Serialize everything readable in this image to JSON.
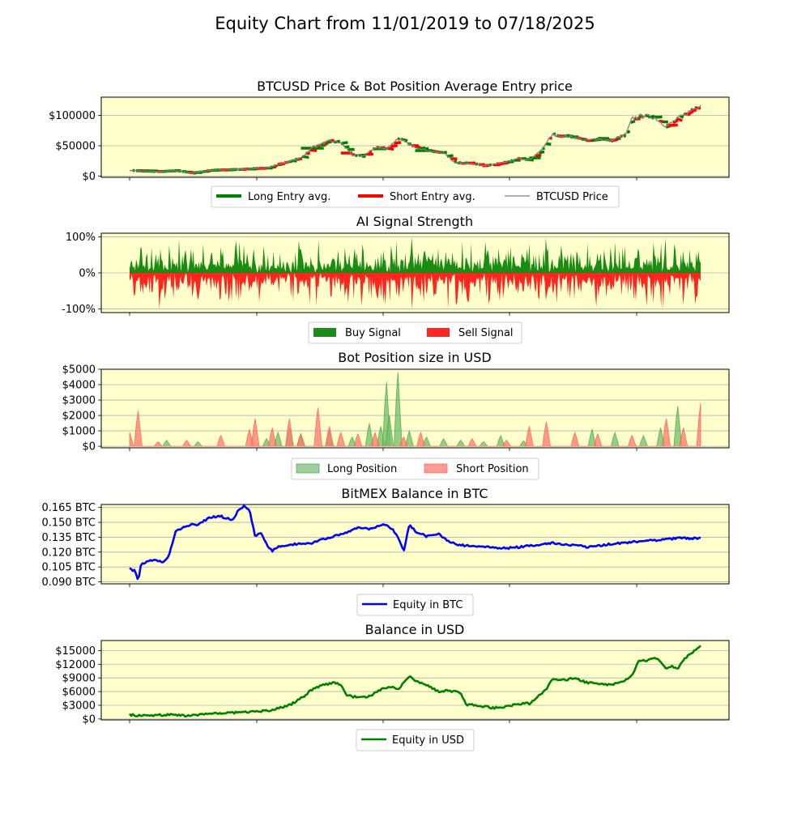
{
  "figure": {
    "title": "Equity Chart from 11/01/2019 to 07/18/2025"
  },
  "colors": {
    "panel_bg": "#ffffcc",
    "grid": "#b0b0b0",
    "green": "#008000",
    "red": "#ff0000",
    "gray": "#808080",
    "blue": "#0000ff",
    "long_fill": "#90cc88",
    "short_fill": "#ff9488"
  },
  "chart_data": [
    {
      "type": "line",
      "title": "BTCUSD Price & Bot Position Average Entry price",
      "y_ticks": [
        {
          "v": 0,
          "label": "$0"
        },
        {
          "v": 50000,
          "label": "$50000"
        },
        {
          "v": 100000,
          "label": "$100000"
        }
      ],
      "ylim": [
        -2000,
        130000
      ],
      "legend": [
        "Long Entry avg.",
        "Short Entry avg.",
        "BTCUSD Price"
      ],
      "x_range": [
        "11/01/2019",
        "07/18/2025"
      ],
      "series": [
        {
          "name": "BTCUSD Price",
          "anchors": [
            [
              0,
              9200
            ],
            [
              0.05,
              7500
            ],
            [
              0.08,
              9000
            ],
            [
              0.11,
              5000
            ],
            [
              0.14,
              9500
            ],
            [
              0.2,
              11500
            ],
            [
              0.24,
              13500
            ],
            [
              0.26,
              19000
            ],
            [
              0.3,
              30000
            ],
            [
              0.32,
              47000
            ],
            [
              0.35,
              58000
            ],
            [
              0.37,
              55000
            ],
            [
              0.39,
              35000
            ],
            [
              0.41,
              33000
            ],
            [
              0.43,
              47000
            ],
            [
              0.45,
              45000
            ],
            [
              0.47,
              62000
            ],
            [
              0.5,
              48000
            ],
            [
              0.53,
              40000
            ],
            [
              0.55,
              38000
            ],
            [
              0.57,
              22000
            ],
            [
              0.6,
              21000
            ],
            [
              0.62,
              17000
            ],
            [
              0.64,
              19500
            ],
            [
              0.66,
              23000
            ],
            [
              0.68,
              29000
            ],
            [
              0.7,
              26000
            ],
            [
              0.72,
              42000
            ],
            [
              0.74,
              68000
            ],
            [
              0.76,
              66000
            ],
            [
              0.78,
              64000
            ],
            [
              0.8,
              58000
            ],
            [
              0.82,
              62000
            ],
            [
              0.84,
              58000
            ],
            [
              0.86,
              65000
            ],
            [
              0.87,
              70000
            ],
            [
              0.88,
              95000
            ],
            [
              0.9,
              100000
            ],
            [
              0.92,
              96000
            ],
            [
              0.94,
              82000
            ],
            [
              0.96,
              95000
            ],
            [
              0.98,
              106000
            ],
            [
              1.0,
              118000
            ]
          ]
        },
        {
          "name": "Long Entry avg.",
          "segments": [
            [
              0.02,
              0.05,
              8500
            ],
            [
              0.3,
              0.34,
              46000
            ],
            [
              0.43,
              0.45,
              45000
            ],
            [
              0.5,
              0.53,
              42000
            ],
            [
              0.7,
              0.72,
              30000
            ],
            [
              0.82,
              0.84,
              62000
            ]
          ]
        },
        {
          "name": "Short Entry avg.",
          "segments": [
            [
              0.26,
              0.27,
              20000
            ],
            [
              0.37,
              0.39,
              38000
            ],
            [
              0.75,
              0.76,
              66000
            ],
            [
              0.94,
              0.96,
              84000
            ],
            [
              0.99,
              1.0,
              112000
            ]
          ]
        }
      ]
    },
    {
      "type": "area",
      "title": "AI Signal Strength",
      "y_ticks": [
        {
          "v": -100,
          "label": "-100%"
        },
        {
          "v": 0,
          "label": "0%"
        },
        {
          "v": 100,
          "label": "100%"
        }
      ],
      "ylim": [
        -110,
        110
      ],
      "legend": [
        "Buy Signal",
        "Sell Signal"
      ]
    },
    {
      "type": "area",
      "title": "Bot Position size in USD",
      "y_ticks": [
        {
          "v": 0,
          "label": "$0"
        },
        {
          "v": 1000,
          "label": "$1000"
        },
        {
          "v": 2000,
          "label": "$2000"
        },
        {
          "v": 3000,
          "label": "$3000"
        },
        {
          "v": 4000,
          "label": "$4000"
        },
        {
          "v": 5000,
          "label": "$5000"
        }
      ],
      "ylim": [
        -100,
        5000
      ],
      "legend": [
        "Long Position",
        "Short Position"
      ],
      "series": [
        {
          "name": "Long Position",
          "peaks": [
            [
              0.065,
              400
            ],
            [
              0.12,
              300
            ],
            [
              0.24,
              500
            ],
            [
              0.26,
              900
            ],
            [
              0.28,
              1200
            ],
            [
              0.3,
              800
            ],
            [
              0.35,
              1000
            ],
            [
              0.39,
              600
            ],
            [
              0.42,
              1500
            ],
            [
              0.44,
              1300
            ],
            [
              0.45,
              4200
            ],
            [
              0.455,
              2000
            ],
            [
              0.47,
              4800
            ],
            [
              0.49,
              1000
            ],
            [
              0.52,
              600
            ],
            [
              0.55,
              500
            ],
            [
              0.58,
              400
            ],
            [
              0.62,
              300
            ],
            [
              0.65,
              700
            ],
            [
              0.69,
              350
            ],
            [
              0.81,
              1100
            ],
            [
              0.85,
              900
            ],
            [
              0.9,
              700
            ],
            [
              0.93,
              1200
            ],
            [
              0.96,
              2600
            ]
          ]
        },
        {
          "name": "Short Position",
          "peaks": [
            [
              0.0,
              900
            ],
            [
              0.015,
              2300
            ],
            [
              0.05,
              300
            ],
            [
              0.1,
              400
            ],
            [
              0.16,
              700
            ],
            [
              0.21,
              1100
            ],
            [
              0.22,
              1800
            ],
            [
              0.25,
              1200
            ],
            [
              0.28,
              1800
            ],
            [
              0.3,
              800
            ],
            [
              0.33,
              2500
            ],
            [
              0.35,
              1300
            ],
            [
              0.37,
              900
            ],
            [
              0.4,
              800
            ],
            [
              0.43,
              900
            ],
            [
              0.48,
              600
            ],
            [
              0.51,
              900
            ],
            [
              0.6,
              500
            ],
            [
              0.66,
              400
            ],
            [
              0.7,
              1300
            ],
            [
              0.73,
              1600
            ],
            [
              0.78,
              900
            ],
            [
              0.82,
              800
            ],
            [
              0.88,
              700
            ],
            [
              0.94,
              1800
            ],
            [
              0.97,
              1200
            ],
            [
              1.0,
              2800
            ]
          ]
        }
      ]
    },
    {
      "type": "line",
      "title": "BitMEX Balance in BTC",
      "y_ticks": [
        {
          "v": 0.09,
          "label": "0.090 BTC"
        },
        {
          "v": 0.105,
          "label": "0.105 BTC"
        },
        {
          "v": 0.12,
          "label": "0.120 BTC"
        },
        {
          "v": 0.135,
          "label": "0.135 BTC"
        },
        {
          "v": 0.15,
          "label": "0.150 BTC"
        },
        {
          "v": 0.165,
          "label": "0.165 BTC"
        }
      ],
      "ylim": [
        0.088,
        0.168
      ],
      "legend": [
        "Equity in BTC"
      ],
      "series": [
        {
          "name": "Equity in BTC",
          "values": [
            [
              0,
              0.103
            ],
            [
              0.01,
              0.101
            ],
            [
              0.015,
              0.09
            ],
            [
              0.02,
              0.108
            ],
            [
              0.04,
              0.112
            ],
            [
              0.06,
              0.11
            ],
            [
              0.07,
              0.118
            ],
            [
              0.08,
              0.14
            ],
            [
              0.1,
              0.147
            ],
            [
              0.12,
              0.148
            ],
            [
              0.14,
              0.155
            ],
            [
              0.16,
              0.156
            ],
            [
              0.18,
              0.152
            ],
            [
              0.19,
              0.162
            ],
            [
              0.2,
              0.166
            ],
            [
              0.21,
              0.162
            ],
            [
              0.22,
              0.135
            ],
            [
              0.23,
              0.14
            ],
            [
              0.24,
              0.128
            ],
            [
              0.25,
              0.121
            ],
            [
              0.26,
              0.126
            ],
            [
              0.29,
              0.128
            ],
            [
              0.32,
              0.129
            ],
            [
              0.35,
              0.135
            ],
            [
              0.38,
              0.14
            ],
            [
              0.4,
              0.145
            ],
            [
              0.42,
              0.143
            ],
            [
              0.44,
              0.147
            ],
            [
              0.45,
              0.148
            ],
            [
              0.46,
              0.143
            ],
            [
              0.47,
              0.135
            ],
            [
              0.48,
              0.12
            ],
            [
              0.49,
              0.148
            ],
            [
              0.5,
              0.141
            ],
            [
              0.52,
              0.136
            ],
            [
              0.54,
              0.139
            ],
            [
              0.56,
              0.13
            ],
            [
              0.58,
              0.127
            ],
            [
              0.62,
              0.125
            ],
            [
              0.66,
              0.124
            ],
            [
              0.7,
              0.126
            ],
            [
              0.74,
              0.129
            ],
            [
              0.78,
              0.127
            ],
            [
              0.8,
              0.125
            ],
            [
              0.84,
              0.128
            ],
            [
              0.88,
              0.13
            ],
            [
              0.92,
              0.132
            ],
            [
              0.96,
              0.134
            ],
            [
              1.0,
              0.134
            ]
          ]
        }
      ]
    },
    {
      "type": "line",
      "title": "Balance in USD",
      "y_ticks": [
        {
          "v": 0,
          "label": "$0"
        },
        {
          "v": 3000,
          "label": "$3000"
        },
        {
          "v": 6000,
          "label": "$6000"
        },
        {
          "v": 9000,
          "label": "$9000"
        },
        {
          "v": 12000,
          "label": "$12000"
        },
        {
          "v": 15000,
          "label": "$15000"
        }
      ],
      "ylim": [
        -200,
        17200
      ],
      "legend": [
        "Equity in USD"
      ],
      "series": [
        {
          "name": "Equity in USD",
          "values": [
            [
              0,
              900
            ],
            [
              0.02,
              700
            ],
            [
              0.05,
              800
            ],
            [
              0.08,
              1000
            ],
            [
              0.1,
              600
            ],
            [
              0.13,
              1100
            ],
            [
              0.16,
              1300
            ],
            [
              0.2,
              1500
            ],
            [
              0.24,
              1800
            ],
            [
              0.26,
              2300
            ],
            [
              0.28,
              3000
            ],
            [
              0.3,
              4500
            ],
            [
              0.32,
              6500
            ],
            [
              0.34,
              7500
            ],
            [
              0.36,
              8000
            ],
            [
              0.37,
              7500
            ],
            [
              0.38,
              5200
            ],
            [
              0.4,
              4700
            ],
            [
              0.42,
              5000
            ],
            [
              0.44,
              6500
            ],
            [
              0.46,
              7000
            ],
            [
              0.47,
              6500
            ],
            [
              0.49,
              9300
            ],
            [
              0.5,
              8400
            ],
            [
              0.52,
              7500
            ],
            [
              0.54,
              6000
            ],
            [
              0.56,
              6200
            ],
            [
              0.58,
              5700
            ],
            [
              0.59,
              3100
            ],
            [
              0.61,
              3000
            ],
            [
              0.63,
              2500
            ],
            [
              0.65,
              2400
            ],
            [
              0.67,
              3000
            ],
            [
              0.69,
              3500
            ],
            [
              0.7,
              3300
            ],
            [
              0.72,
              5500
            ],
            [
              0.73,
              6500
            ],
            [
              0.74,
              8800
            ],
            [
              0.76,
              8500
            ],
            [
              0.78,
              9000
            ],
            [
              0.8,
              8000
            ],
            [
              0.82,
              7800
            ],
            [
              0.84,
              7500
            ],
            [
              0.86,
              8000
            ],
            [
              0.88,
              9500
            ],
            [
              0.89,
              12500
            ],
            [
              0.91,
              13000
            ],
            [
              0.92,
              13500
            ],
            [
              0.93,
              12500
            ],
            [
              0.94,
              11000
            ],
            [
              0.95,
              11500
            ],
            [
              0.96,
              11000
            ],
            [
              0.97,
              13000
            ],
            [
              0.98,
              14000
            ],
            [
              0.99,
              15000
            ],
            [
              1.0,
              16000
            ]
          ]
        }
      ]
    }
  ]
}
